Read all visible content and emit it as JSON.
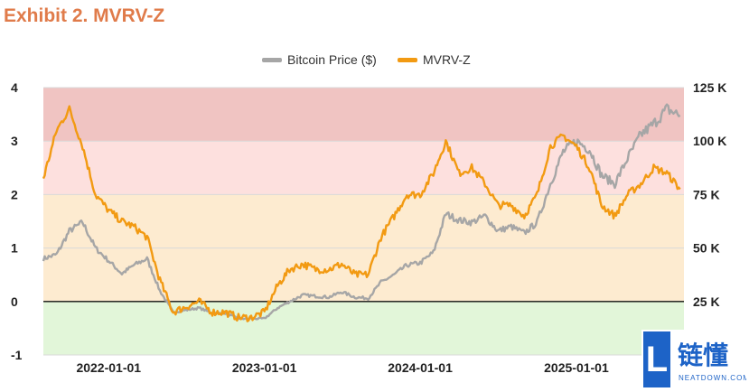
{
  "title": "Exhibit 2. MVRV-Z",
  "legend": {
    "price_label": "Bitcoin Price ($)",
    "mvrv_label": "MVRV-Z"
  },
  "colors": {
    "title": "#e07b4a",
    "price_line": "#a6a6a6",
    "mvrv_line": "#f29a12",
    "band_red": "#f0c4c2",
    "band_pink": "#fde0de",
    "band_orange": "#fdebd0",
    "band_green": "#e2f6d9"
  },
  "watermark": {
    "cn": "链懂",
    "en": "NEATDOWN.COM",
    "logo_letter": "L"
  },
  "chart_data": {
    "type": "line",
    "title": "Exhibit 2. MVRV-Z",
    "xlabel": "",
    "ylabel": "",
    "x_ticks": [
      "2022-01-01",
      "2023-01-01",
      "2024-01-01",
      "2025-01-01"
    ],
    "y_left_ticks": [
      "4",
      "3",
      "2",
      "1",
      "0",
      "-1"
    ],
    "y_right_ticks": [
      "125 K",
      "100 K",
      "75 K",
      "50 K",
      "25 K"
    ],
    "ylim_left": [
      -1,
      4
    ],
    "ylim_right": [
      25000,
      125000
    ],
    "bands": [
      {
        "from": 3,
        "to": 4,
        "color": "#f0c4c2"
      },
      {
        "from": 2,
        "to": 3,
        "color": "#fde0de"
      },
      {
        "from": 0,
        "to": 2,
        "color": "#fdebd0"
      },
      {
        "from": -1,
        "to": 0,
        "color": "#e2f6d9"
      }
    ],
    "legend_position": "top-center",
    "grid": "horizontal",
    "series": [
      {
        "name": "Bitcoin Price ($)",
        "axis": "right",
        "color": "#a6a6a6",
        "x": [
          "2021-08-01",
          "2021-09-01",
          "2021-10-01",
          "2021-11-01",
          "2021-12-01",
          "2022-01-01",
          "2022-02-01",
          "2022-03-01",
          "2022-04-01",
          "2022-05-01",
          "2022-06-01",
          "2022-07-01",
          "2022-08-01",
          "2022-09-01",
          "2022-10-01",
          "2022-11-01",
          "2022-12-01",
          "2023-01-01",
          "2023-02-01",
          "2023-03-01",
          "2023-04-01",
          "2023-05-01",
          "2023-06-01",
          "2023-07-01",
          "2023-08-01",
          "2023-09-01",
          "2023-10-01",
          "2023-11-01",
          "2023-12-01",
          "2024-01-01",
          "2024-02-01",
          "2024-03-01",
          "2024-04-01",
          "2024-05-01",
          "2024-06-01",
          "2024-07-01",
          "2024-08-01",
          "2024-09-01",
          "2024-10-01",
          "2024-11-01",
          "2024-12-01",
          "2025-01-01",
          "2025-02-01",
          "2025-03-01",
          "2025-04-01",
          "2025-05-01",
          "2025-06-01",
          "2025-07-01",
          "2025-08-01",
          "2025-09-01"
        ],
        "values": [
          45000,
          47000,
          58000,
          62000,
          50000,
          44000,
          38000,
          42000,
          45000,
          30000,
          20000,
          21000,
          22000,
          19500,
          19500,
          17000,
          17000,
          17000,
          22000,
          25000,
          28000,
          27500,
          27000,
          29500,
          27000,
          26500,
          34000,
          37500,
          42000,
          43000,
          48000,
          66000,
          63000,
          62000,
          65000,
          58000,
          60000,
          57000,
          62000,
          80000,
          95000,
          100000,
          96000,
          84000,
          80000,
          92000,
          103000,
          108000,
          115000,
          112000
        ]
      },
      {
        "name": "MVRV-Z",
        "axis": "left",
        "color": "#f29a12",
        "x": [
          "2021-08-01",
          "2021-09-01",
          "2021-10-01",
          "2021-11-01",
          "2021-12-01",
          "2022-01-01",
          "2022-02-01",
          "2022-03-01",
          "2022-04-01",
          "2022-05-01",
          "2022-06-01",
          "2022-07-01",
          "2022-08-01",
          "2022-09-01",
          "2022-10-01",
          "2022-11-01",
          "2022-12-01",
          "2023-01-01",
          "2023-02-01",
          "2023-03-01",
          "2023-04-01",
          "2023-05-01",
          "2023-06-01",
          "2023-07-01",
          "2023-08-01",
          "2023-09-01",
          "2023-10-01",
          "2023-11-01",
          "2023-12-01",
          "2024-01-01",
          "2024-02-01",
          "2024-03-01",
          "2024-04-01",
          "2024-05-01",
          "2024-06-01",
          "2024-07-01",
          "2024-08-01",
          "2024-09-01",
          "2024-10-01",
          "2024-11-01",
          "2024-12-01",
          "2025-01-01",
          "2025-02-01",
          "2025-03-01",
          "2025-04-01",
          "2025-05-01",
          "2025-06-01",
          "2025-07-01",
          "2025-08-01",
          "2025-09-01"
        ],
        "values": [
          2.3,
          3.2,
          3.6,
          2.9,
          2.0,
          1.7,
          1.5,
          1.4,
          1.2,
          0.4,
          -0.2,
          -0.1,
          0.0,
          -0.2,
          -0.2,
          -0.3,
          -0.3,
          -0.2,
          0.3,
          0.6,
          0.7,
          0.6,
          0.6,
          0.7,
          0.5,
          0.5,
          1.2,
          1.6,
          2.0,
          2.0,
          2.4,
          3.0,
          2.4,
          2.5,
          2.2,
          1.8,
          1.8,
          1.6,
          2.0,
          2.9,
          3.1,
          2.9,
          2.5,
          1.8,
          1.6,
          2.0,
          2.2,
          2.5,
          2.4,
          2.1
        ]
      }
    ]
  }
}
